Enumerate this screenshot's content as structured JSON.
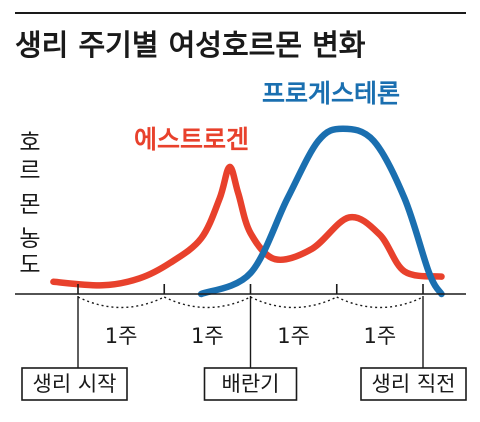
{
  "chart_data": {
    "type": "line",
    "title": "생리 주기별 여성호르몬 변화",
    "ylabel": "호르몬 농도",
    "x": [
      0,
      7,
      14,
      21,
      28
    ],
    "xlim": [
      0,
      28
    ],
    "ylim": [
      0,
      1
    ],
    "grid": false,
    "x_tick_labels": [
      "1주",
      "1주",
      "1주",
      "1주"
    ],
    "events": [
      {
        "label": "생리 시작",
        "day": 0
      },
      {
        "label": "배란기",
        "day": 14
      },
      {
        "label": "생리 직전",
        "day": 28
      }
    ],
    "series": [
      {
        "name": "에스트로겐",
        "color": "#e8412c",
        "points": [
          [
            -2,
            0.07
          ],
          [
            2,
            0.05
          ],
          [
            5,
            0.09
          ],
          [
            7.5,
            0.18
          ],
          [
            10,
            0.32
          ],
          [
            11.5,
            0.55
          ],
          [
            12.3,
            0.73
          ],
          [
            13.0,
            0.58
          ],
          [
            14,
            0.35
          ],
          [
            16,
            0.2
          ],
          [
            19,
            0.26
          ],
          [
            22,
            0.44
          ],
          [
            24.5,
            0.34
          ],
          [
            26.5,
            0.13
          ],
          [
            29.5,
            0.1
          ]
        ]
      },
      {
        "name": "프로게스테론",
        "color": "#1a6fb0",
        "points": [
          [
            10,
            0.0
          ],
          [
            14,
            0.12
          ],
          [
            17,
            0.55
          ],
          [
            19.5,
            0.88
          ],
          [
            21.5,
            0.95
          ],
          [
            24,
            0.88
          ],
          [
            26.5,
            0.55
          ],
          [
            28.5,
            0.12
          ],
          [
            29.5,
            0.0
          ]
        ]
      }
    ]
  }
}
